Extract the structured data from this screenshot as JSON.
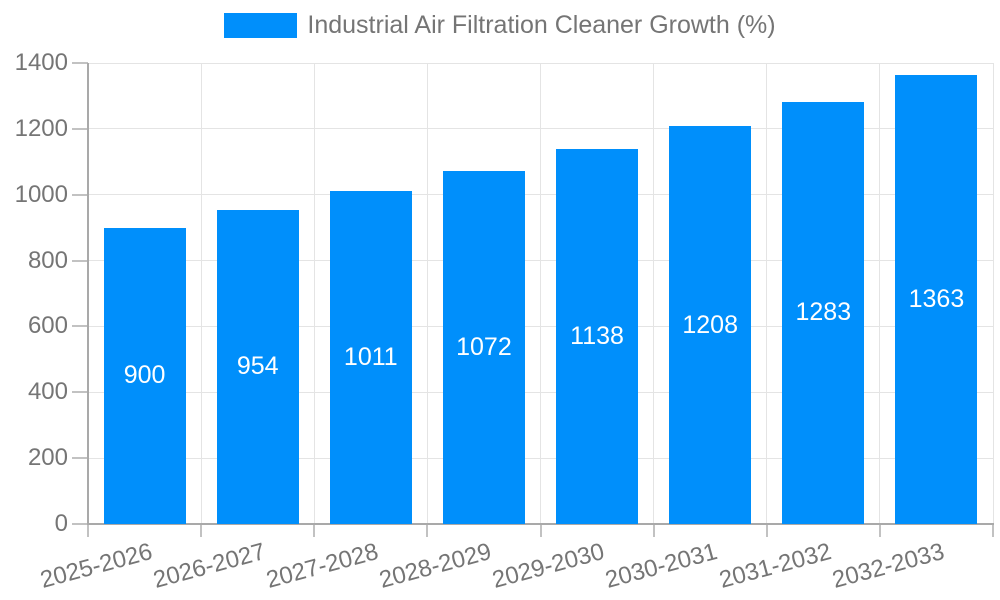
{
  "chart_data": {
    "type": "bar",
    "title": "Industrial Air Filtration Cleaner Growth (%)",
    "legend_position": "top",
    "categories": [
      "2025-2026",
      "2026-2027",
      "2027-2028",
      "2028-2029",
      "2029-2030",
      "2030-2031",
      "2031-2032",
      "2032-2033"
    ],
    "values": [
      900,
      954,
      1011,
      1072,
      1138,
      1208,
      1283,
      1363
    ],
    "value_labels": [
      "900",
      "954",
      "1011",
      "1072",
      "1138",
      "1208",
      "1283",
      "1363"
    ],
    "xlabel": "",
    "ylabel": "",
    "ylim": [
      0,
      1400
    ],
    "yticks": [
      0,
      200,
      400,
      600,
      800,
      1000,
      1200,
      1400
    ],
    "grid": true,
    "x_label_rotation_deg": -15,
    "bar_color": "#008FFB",
    "value_label_color": "#ffffff",
    "grid_color": "#e4e4e4",
    "axis_color": "#a9a9a9",
    "tick_color": "#c2c2c2",
    "text_color": "#757575"
  }
}
